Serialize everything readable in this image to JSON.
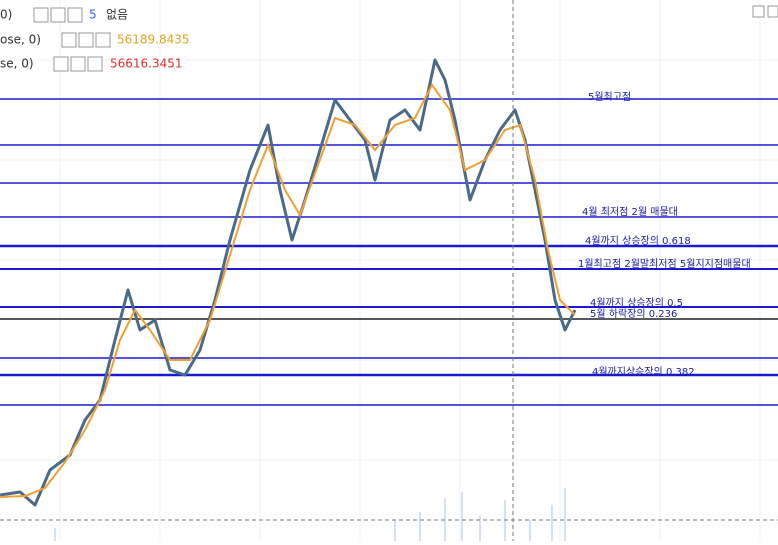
{
  "legend_rows": [
    {
      "name": "0)",
      "value": "5",
      "extra": "없음"
    },
    {
      "name": "ose, 0)",
      "value": "56189.8435"
    },
    {
      "name": "se, 0)",
      "value": "56616.3451"
    }
  ],
  "level_labels": [
    "5월최고점",
    "4월 최저점 2월 매물대",
    "4월까지 상승장의 0.618",
    "1월최고점 2월말최저점 5월지지점매물대",
    "4월까지 상승장의 0.5",
    "5월 하락장의 0.236",
    "4월까지상승장의 0.382"
  ]
}
